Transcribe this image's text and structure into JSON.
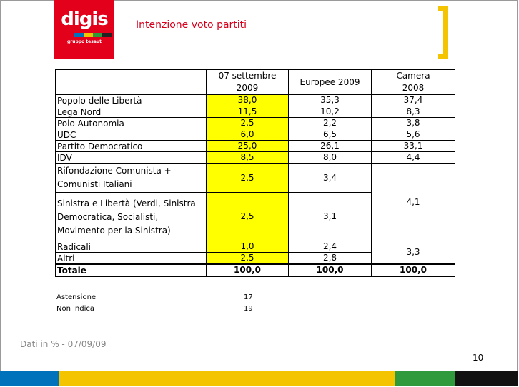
{
  "header": {
    "logo_text": "digis",
    "logo_subtext": "gruppo tesaut",
    "title": "Intenzione voto partiti"
  },
  "colors": {
    "brand_red": "#e2001a",
    "highlight_yellow": "#ffff00",
    "accent_yellow": "#f5c400",
    "logo_stripes": [
      "#0072bc",
      "#f5c400",
      "#2e9a3c",
      "#222222"
    ],
    "bottom_bar": [
      "#0072bc",
      "#f5c400",
      "#2e9a3c",
      "#111111"
    ]
  },
  "table": {
    "headers": {
      "party": "",
      "col1_line1": "07 settembre",
      "col1_line2": "2009",
      "col2": "Europee 2009",
      "col3_line1": "Camera",
      "col3_line2": "2008"
    },
    "rows": [
      {
        "party": "Popolo delle Libertà",
        "sept": "38,0",
        "europee": "35,3",
        "camera": "37,4"
      },
      {
        "party": "Lega Nord",
        "sept": "11,5",
        "europee": "10,2",
        "camera": "8,3"
      },
      {
        "party": "Polo Autonomia",
        "sept": "2,5",
        "europee": "2,2",
        "camera": "3,8"
      },
      {
        "party": "UDC",
        "sept": "6,0",
        "europee": "6,5",
        "camera": "5,6"
      },
      {
        "party": "Partito Democratico",
        "sept": "25,0",
        "europee": "26,1",
        "camera": "33,1"
      },
      {
        "party": "IDV",
        "sept": "8,5",
        "europee": "8,0",
        "camera": "4,4"
      }
    ],
    "group_left": {
      "rows": [
        {
          "party_line1": "Rifondazione Comunista +",
          "party_line2": "Comunisti Italiani",
          "sept": "2,5",
          "europee": "3,4"
        },
        {
          "party_line1": "Sinistra e Libertà (Verdi, Sinistra",
          "party_line2": "Democratica, Socialisti,",
          "party_line3": "Movimento per la Sinistra)",
          "sept": "2,5",
          "europee": "3,1"
        }
      ],
      "camera_combined": "4,1"
    },
    "group_right": {
      "rows": [
        {
          "party": "Radicali",
          "sept": "1,0",
          "europee": "2,4"
        },
        {
          "party": "Altri",
          "sept": "2,5",
          "europee": "2,8"
        }
      ],
      "camera_combined": "3,3"
    },
    "total": {
      "label": "Totale",
      "sept": "100,0",
      "europee": "100,0",
      "camera": "100,0"
    }
  },
  "notes": [
    {
      "label": "Astensione",
      "value": "17"
    },
    {
      "label": "Non indica",
      "value": "19"
    }
  ],
  "footer": {
    "source_note": "Dati in % - 07/09/09",
    "page_number": "10"
  }
}
